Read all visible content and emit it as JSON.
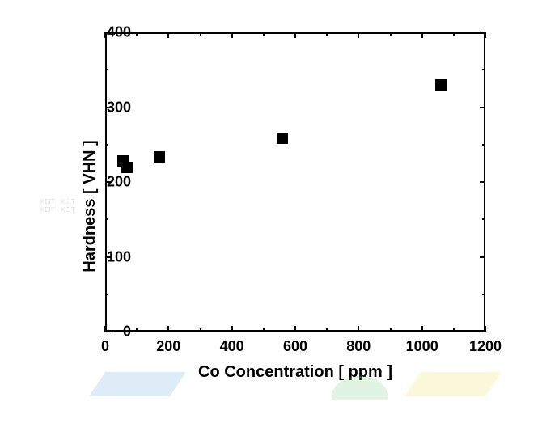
{
  "chart": {
    "type": "scatter",
    "xlabel": "Co Concentration [ ppm ]",
    "ylabel": "Hardness [ VHN ]",
    "label_fontsize": 20,
    "tick_fontsize": 18,
    "xlim": [
      0,
      1200
    ],
    "ylim": [
      0,
      400
    ],
    "xtick_step": 200,
    "ytick_step": 100,
    "xtick_minor_step": 100,
    "ytick_minor_step": 50,
    "xticks": [
      0,
      200,
      400,
      600,
      800,
      1000,
      1200
    ],
    "yticks": [
      0,
      100,
      200,
      300,
      400
    ],
    "xticks_minor": [
      100,
      300,
      500,
      700,
      900,
      1100
    ],
    "yticks_minor": [
      50,
      150,
      250,
      350
    ],
    "background_color": "#ffffff",
    "border_color": "#000000",
    "marker_style": "square",
    "marker_size": 14,
    "marker_color": "#000000",
    "points": [
      {
        "x": 55,
        "y": 228
      },
      {
        "x": 70,
        "y": 220
      },
      {
        "x": 170,
        "y": 233
      },
      {
        "x": 560,
        "y": 258
      },
      {
        "x": 1060,
        "y": 330
      }
    ]
  },
  "watermark": {
    "text": "KEIT",
    "shapes": [
      {
        "type": "blue",
        "style": "parallelogram"
      },
      {
        "type": "green",
        "style": "circle"
      },
      {
        "type": "yellow",
        "style": "parallelogram"
      }
    ]
  }
}
